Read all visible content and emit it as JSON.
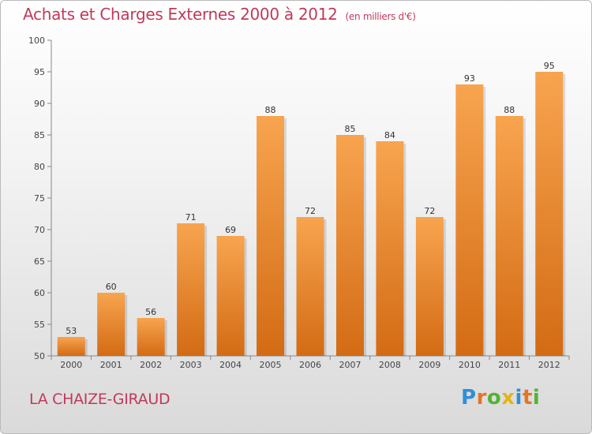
{
  "title": "Achats et Charges Externes 2000 à 2012",
  "subtitle": "(en milliers d'€)",
  "place": "LA CHAIZE-GIRAUD",
  "logo": {
    "text": "Proxiti",
    "letters": [
      {
        "ch": "P",
        "color": "#2f8fd8"
      },
      {
        "ch": "r",
        "color": "#e5732a"
      },
      {
        "ch": "o",
        "color": "#52b334"
      },
      {
        "ch": "x",
        "color": "#e3b514"
      },
      {
        "ch": "i",
        "color": "#2f8fd8"
      },
      {
        "ch": "t",
        "color": "#e5732a"
      },
      {
        "ch": "i",
        "color": "#52b334"
      }
    ]
  },
  "colors": {
    "bar_light": "#f8a44f",
    "bar_dark": "#d36b14",
    "title": "#c03a5a"
  },
  "chart_data": {
    "type": "bar",
    "categories": [
      "2000",
      "2001",
      "2002",
      "2003",
      "2004",
      "2005",
      "2006",
      "2007",
      "2008",
      "2009",
      "2010",
      "2011",
      "2012"
    ],
    "values": [
      53,
      60,
      56,
      71,
      69,
      88,
      72,
      85,
      84,
      72,
      93,
      88,
      95
    ],
    "ylim": [
      50,
      100
    ],
    "yticks": [
      50,
      55,
      60,
      65,
      70,
      75,
      80,
      85,
      90,
      95,
      100
    ],
    "grid": false,
    "legend": "none"
  }
}
